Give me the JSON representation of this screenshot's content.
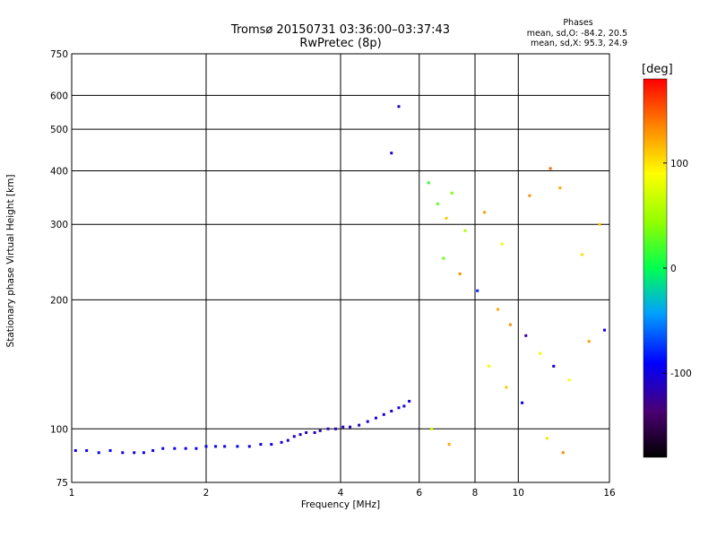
{
  "chart_data": {
    "type": "scatter",
    "title": "Tromsø 20150731 03:36:00–03:37:43",
    "subtitle": "RwPretec (8p)",
    "phase_box": {
      "title": "Phases",
      "line_o": "mean, sd,O: -84.2, 20.5",
      "line_x": "mean, sd,X:  95.3, 24.9"
    },
    "xlabel": "Frequency [MHz]",
    "ylabel": "Stationary phase Virtual Height [km]",
    "xscale": "log",
    "yscale": "log",
    "xlim": [
      1,
      16
    ],
    "ylim": [
      75,
      750
    ],
    "x_ticks": [
      1,
      2,
      4,
      6,
      8,
      10,
      16
    ],
    "x_tick_labels": [
      "1",
      "2",
      "4",
      "6",
      "8",
      "10",
      "16"
    ],
    "y_ticks": [
      75,
      100,
      200,
      300,
      400,
      500,
      600,
      750
    ],
    "y_tick_labels": [
      "75",
      "100",
      "200",
      "300",
      "400",
      "500",
      "600",
      "750"
    ],
    "grid": true,
    "colorbar": {
      "label": "[deg]",
      "range": [
        -180,
        180
      ],
      "tick_values": [
        100,
        0,
        -100
      ],
      "tick_labels": [
        "100",
        "0",
        "-100"
      ]
    },
    "series": [
      {
        "points": [
          [
            1.02,
            89,
            -95
          ],
          [
            1.08,
            89,
            -92
          ],
          [
            1.15,
            88,
            -96
          ],
          [
            1.22,
            89,
            -90
          ],
          [
            1.3,
            88,
            -94
          ],
          [
            1.38,
            88,
            -97
          ],
          [
            1.45,
            88,
            -93
          ],
          [
            1.52,
            89,
            -95
          ],
          [
            1.6,
            90,
            -91
          ],
          [
            1.7,
            90,
            -96
          ],
          [
            1.8,
            90,
            -92
          ],
          [
            1.9,
            90,
            -94
          ],
          [
            2.0,
            91,
            -95
          ],
          [
            2.1,
            91,
            -93
          ],
          [
            2.2,
            91,
            -96
          ],
          [
            2.35,
            91,
            -92
          ],
          [
            2.5,
            91,
            -98
          ],
          [
            2.65,
            92,
            -94
          ],
          [
            2.8,
            92,
            -100
          ],
          [
            2.95,
            93,
            -105
          ],
          [
            3.05,
            94,
            -110
          ],
          [
            3.15,
            96,
            -108
          ],
          [
            3.25,
            97,
            -112
          ],
          [
            3.35,
            98,
            -115
          ],
          [
            3.5,
            98,
            -110
          ],
          [
            3.6,
            99,
            -114
          ],
          [
            3.75,
            100,
            -112
          ],
          [
            3.9,
            100,
            -116
          ],
          [
            4.05,
            101,
            -110
          ],
          [
            4.2,
            101,
            -112
          ],
          [
            4.4,
            102,
            -110
          ],
          [
            4.6,
            104,
            -108
          ],
          [
            4.8,
            106,
            -105
          ],
          [
            5.0,
            108,
            -104
          ],
          [
            5.2,
            110,
            -102
          ],
          [
            5.4,
            112,
            -100
          ],
          [
            5.55,
            113,
            -98
          ],
          [
            5.7,
            116,
            -96
          ],
          [
            5.4,
            565,
            -110
          ],
          [
            5.2,
            440,
            -105
          ]
        ]
      },
      {
        "points": [
          [
            6.3,
            375,
            15
          ],
          [
            7.1,
            355,
            40
          ],
          [
            6.6,
            335,
            30
          ],
          [
            6.9,
            310,
            110
          ],
          [
            7.6,
            290,
            55
          ],
          [
            8.4,
            320,
            125
          ],
          [
            9.2,
            270,
            85
          ],
          [
            10.6,
            350,
            130
          ],
          [
            11.8,
            405,
            145
          ],
          [
            12.4,
            365,
            120
          ],
          [
            13.9,
            255,
            100
          ],
          [
            15.2,
            300,
            110
          ],
          [
            6.8,
            250,
            35
          ],
          [
            7.4,
            230,
            130
          ],
          [
            8.1,
            210,
            -80
          ],
          [
            9.0,
            190,
            120
          ],
          [
            9.6,
            175,
            130
          ],
          [
            10.4,
            165,
            -120
          ],
          [
            11.2,
            150,
            95
          ],
          [
            12.0,
            140,
            -100
          ],
          [
            13.0,
            130,
            90
          ],
          [
            14.4,
            160,
            125
          ],
          [
            15.6,
            170,
            -95
          ],
          [
            8.6,
            140,
            85
          ],
          [
            9.4,
            125,
            110
          ],
          [
            10.2,
            115,
            -90
          ],
          [
            11.6,
            95,
            100
          ],
          [
            12.6,
            88,
            130
          ],
          [
            6.4,
            100,
            70
          ],
          [
            7.0,
            92,
            120
          ]
        ]
      }
    ]
  }
}
